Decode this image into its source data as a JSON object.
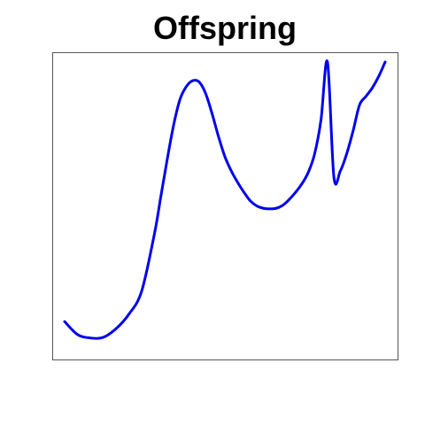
{
  "chart_data": {
    "type": "line",
    "title": "Offspring",
    "xlabel": "",
    "ylabel": "",
    "axes_visible": false,
    "grid": false,
    "frame": true,
    "xlim": [
      0,
      1
    ],
    "ylim": [
      0,
      1
    ],
    "series": [
      {
        "color": "#0000ee",
        "x": [
          0.0,
          0.04,
          0.08,
          0.12,
          0.16,
          0.2,
          0.24,
          0.28,
          0.3,
          0.32,
          0.34,
          0.36,
          0.38,
          0.4,
          0.42,
          0.44,
          0.46,
          0.48,
          0.5,
          0.52,
          0.54,
          0.56,
          0.58,
          0.6,
          0.62,
          0.64,
          0.66,
          0.68,
          0.7,
          0.72,
          0.74,
          0.76,
          0.78,
          0.8,
          0.82,
          0.84,
          0.86,
          0.88,
          0.9,
          0.92,
          0.94,
          0.96,
          0.98,
          1.0
        ],
        "y": [
          0.095,
          0.05,
          0.038,
          0.04,
          0.07,
          0.12,
          0.2,
          0.4,
          0.53,
          0.66,
          0.78,
          0.87,
          0.915,
          0.935,
          0.93,
          0.89,
          0.82,
          0.74,
          0.67,
          0.62,
          0.58,
          0.545,
          0.515,
          0.498,
          0.49,
          0.488,
          0.49,
          0.5,
          0.52,
          0.545,
          0.575,
          0.615,
          0.68,
          0.8,
          1.0,
          0.6,
          0.62,
          0.68,
          0.76,
          0.85,
          0.88,
          0.91,
          0.95,
          1.0
        ]
      }
    ]
  }
}
